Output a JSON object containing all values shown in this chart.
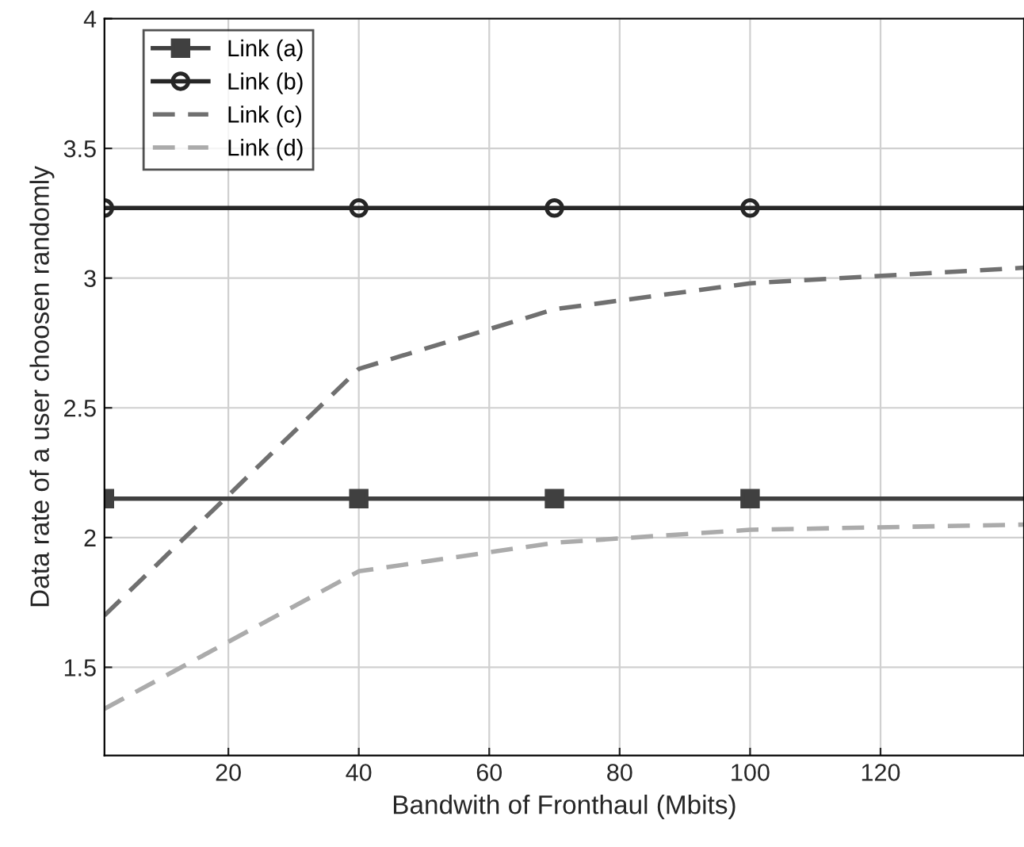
{
  "chart_data": {
    "type": "line",
    "xlabel": "Bandwith of Fronthaul (Mbits)",
    "ylabel": "Data rate of a user choosen randomly",
    "x": [
      1,
      40,
      70,
      100,
      142
    ],
    "series": [
      {
        "name": "Link (a)",
        "color": "#404040",
        "values": [
          2.15,
          2.15,
          2.15,
          2.15,
          2.15
        ],
        "marker": "square",
        "line_style": "solid"
      },
      {
        "name": "Link (b)",
        "color": "#262626",
        "values": [
          3.27,
          3.27,
          3.27,
          3.27,
          3.27
        ],
        "marker": "circle",
        "line_style": "solid"
      },
      {
        "name": "Link (c)",
        "color": "#707070",
        "values": [
          1.7,
          2.65,
          2.88,
          2.98,
          3.04
        ],
        "marker": "none",
        "line_style": "dashed"
      },
      {
        "name": "Link (d)",
        "color": "#ababab",
        "values": [
          1.34,
          1.87,
          1.98,
          2.03,
          2.05
        ],
        "marker": "none",
        "line_style": "dashed"
      }
    ],
    "xlim": [
      1,
      142
    ],
    "xticks": [
      20,
      40,
      60,
      80,
      100,
      120
    ],
    "ylim": [
      1.16,
      4
    ],
    "yticks": [
      1.5,
      2,
      2.5,
      3,
      3.5,
      4
    ],
    "grid": true,
    "legend": "top left"
  }
}
